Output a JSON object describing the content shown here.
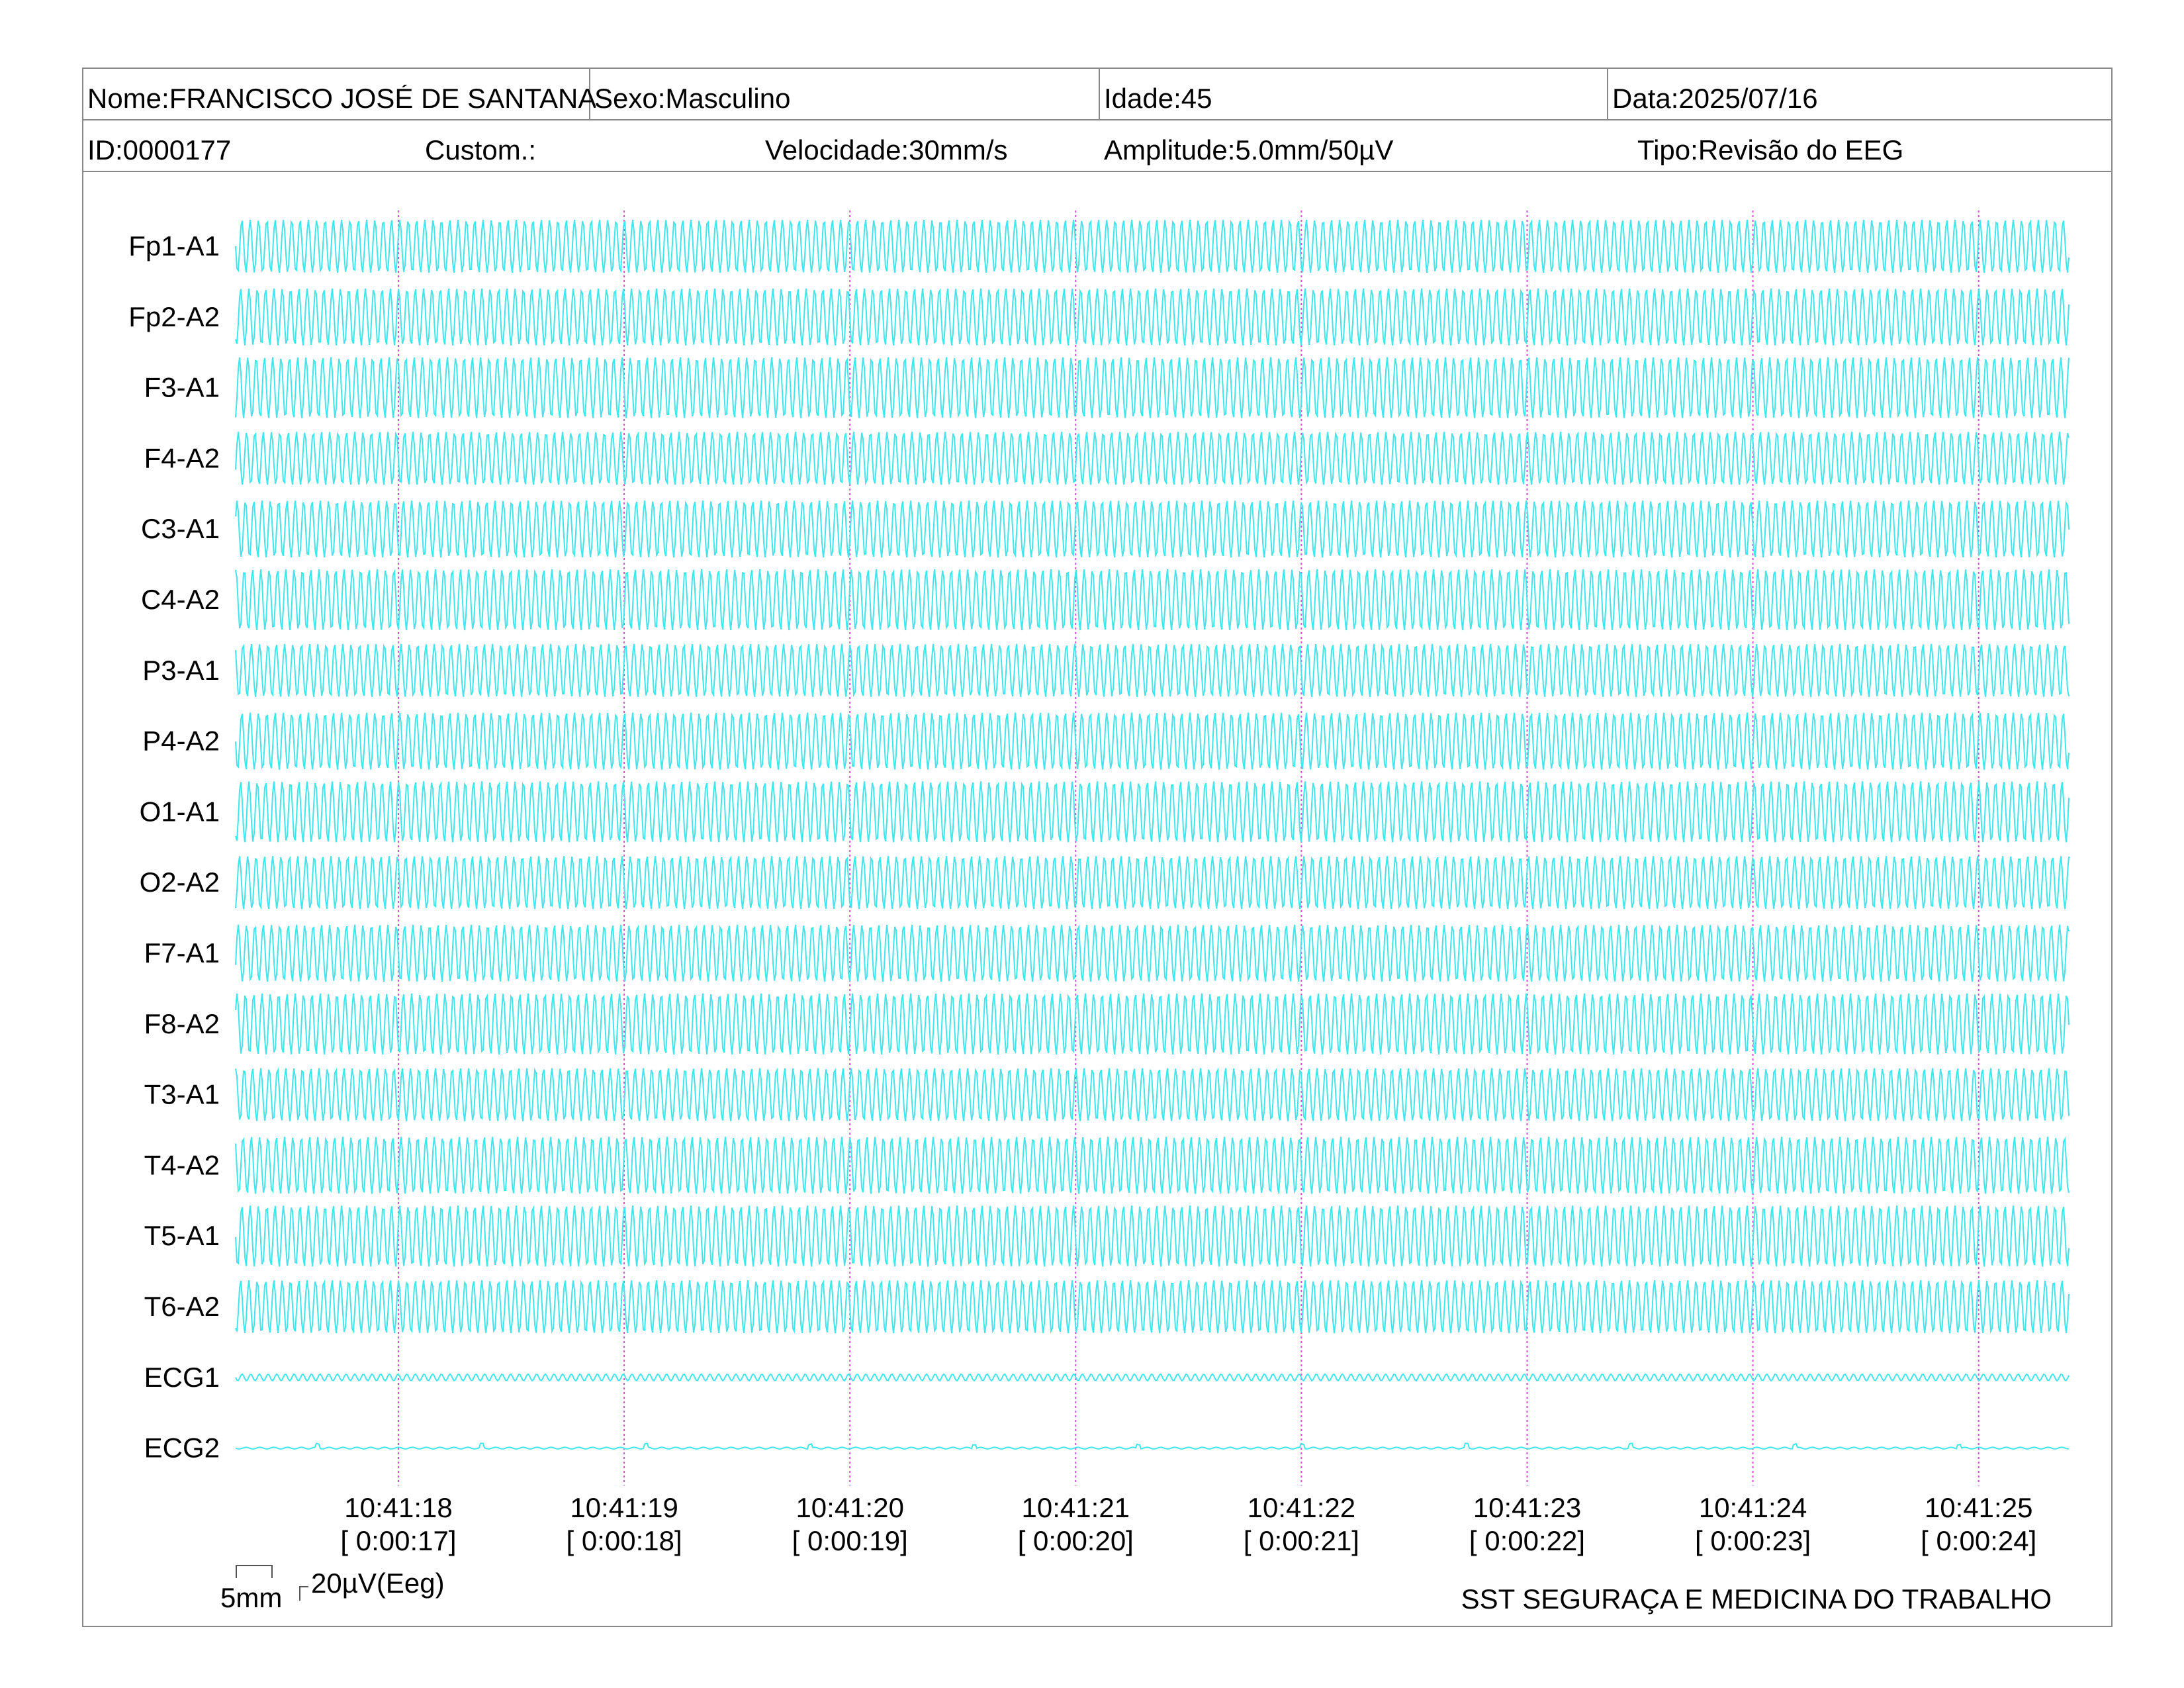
{
  "header": {
    "nome": "Nome:FRANCISCO JOSÉ DE SANTANA",
    "sexo": "Sexo:Masculino",
    "idade": "Idade:45",
    "data": "Data:2025/07/16",
    "id": "ID:0000177",
    "custom": "Custom.:",
    "velocidade": "Velocidade:30mm/s",
    "amplitude": "Amplitude:5.0mm/50µV",
    "tipo": "Tipo:Revisão do EEG"
  },
  "colors": {
    "trace": "#3fe6ec",
    "marker": "#d34fd3",
    "frame": "#888888"
  },
  "chart_data": {
    "type": "line",
    "channels": [
      "Fp1-A1",
      "Fp2-A2",
      "F3-A1",
      "F4-A2",
      "C3-A1",
      "C4-A2",
      "P3-A1",
      "P4-A2",
      "O1-A1",
      "O2-A2",
      "F7-A1",
      "F8-A2",
      "T3-A1",
      "T4-A2",
      "T5-A1",
      "T6-A2",
      "ECG1",
      "ECG2"
    ],
    "time_markers": [
      {
        "time": "10:41:18",
        "elapsed": "[ 0:00:17]"
      },
      {
        "time": "10:41:19",
        "elapsed": "[ 0:00:18]"
      },
      {
        "time": "10:41:20",
        "elapsed": "[ 0:00:19]"
      },
      {
        "time": "10:41:21",
        "elapsed": "[ 0:00:20]"
      },
      {
        "time": "10:41:22",
        "elapsed": "[ 0:00:21]"
      },
      {
        "time": "10:41:23",
        "elapsed": "[ 0:00:22]"
      },
      {
        "time": "10:41:24",
        "elapsed": "[ 0:00:23]"
      },
      {
        "time": "10:41:25",
        "elapsed": "[ 0:00:24]"
      }
    ],
    "scale": {
      "time_bar": "5mm",
      "amplitude_bar": "20µV(Eeg)"
    }
  },
  "footer": {
    "company": "SST SEGURAÇA E MEDICINA DO TRABALHO"
  }
}
